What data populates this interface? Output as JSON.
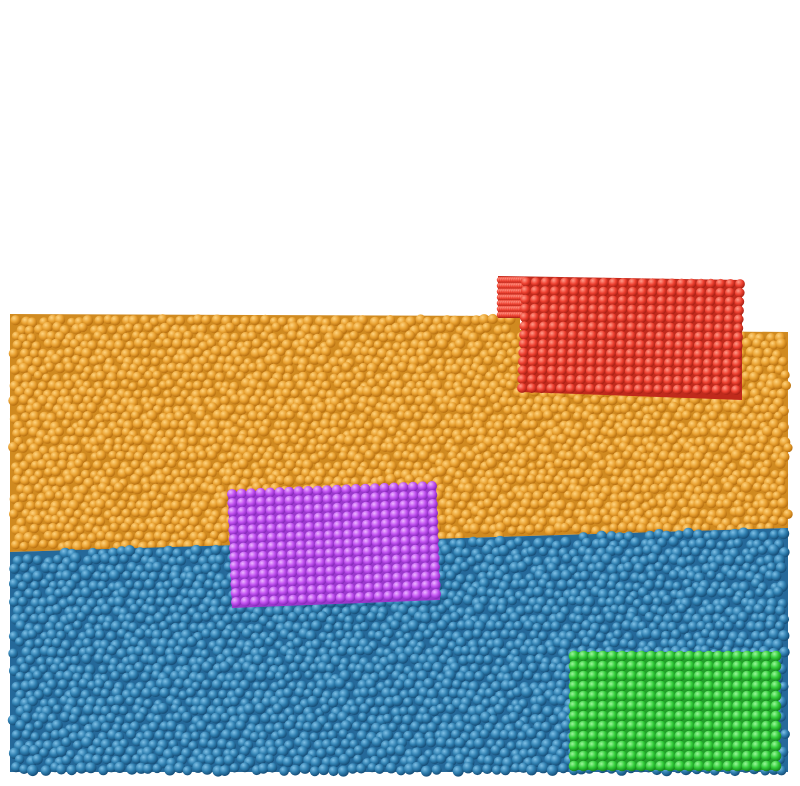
{
  "scene": {
    "background": "#ffffff",
    "layers": [
      {
        "name": "upper-granular-layer",
        "color": "#e8a030",
        "shade": "#c07a12",
        "highlight": "#ffd480"
      },
      {
        "name": "lower-granular-layer",
        "color": "#2f7fb0",
        "shade": "#1b5a86",
        "highlight": "#7fc0e6"
      }
    ],
    "blocks": [
      {
        "name": "red-block",
        "color": "#ee4030",
        "shade": "#b02418",
        "highlight": "#ff9a8a"
      },
      {
        "name": "magenta-block",
        "color": "#c050f0",
        "shade": "#8c2cc0",
        "highlight": "#ecb8ff"
      },
      {
        "name": "green-block",
        "color": "#30cc38",
        "shade": "#1c8c22",
        "highlight": "#9cf59c"
      }
    ]
  }
}
